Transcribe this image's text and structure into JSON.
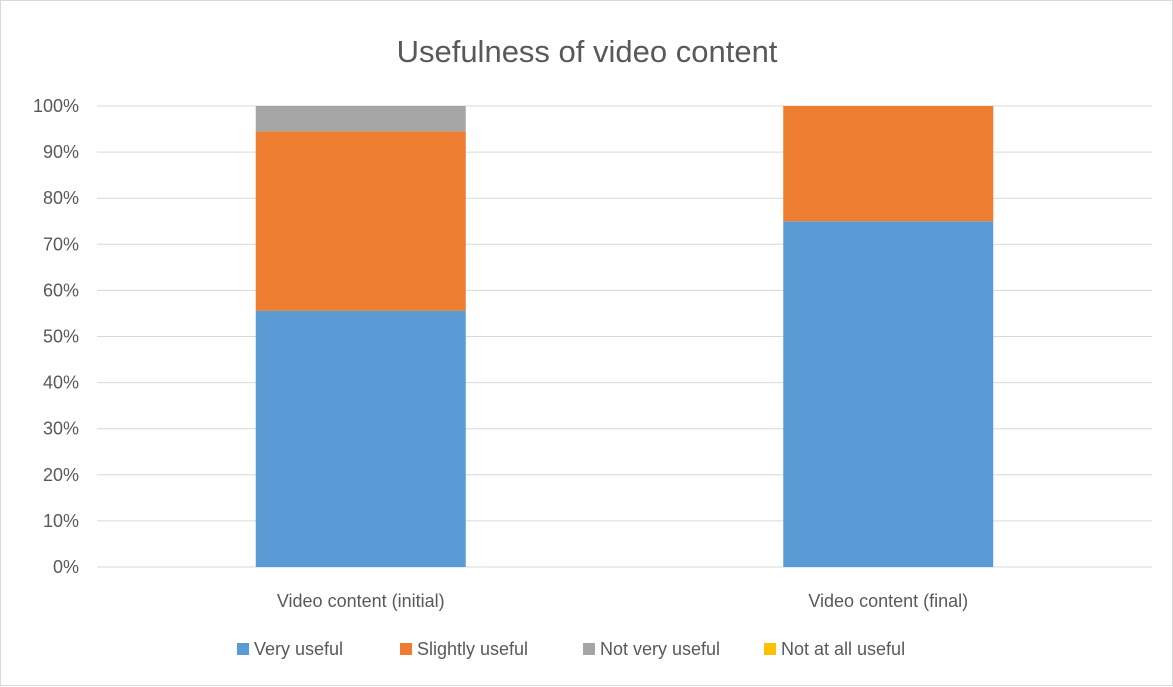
{
  "chart_data": {
    "type": "bar",
    "stacked": true,
    "title": "Usefulness of video content",
    "categories": [
      "Video content (initial)",
      "Video content (final)"
    ],
    "series": [
      {
        "name": "Very useful",
        "color": "#5b9bd5",
        "values": [
          55.6,
          75
        ]
      },
      {
        "name": "Slightly useful",
        "color": "#ed7d31",
        "values": [
          38.9,
          25
        ]
      },
      {
        "name": "Not very useful",
        "color": "#a5a5a5",
        "values": [
          5.5,
          0
        ]
      },
      {
        "name": "Not at all useful",
        "color": "#ffc000",
        "values": [
          0,
          0
        ]
      }
    ],
    "ylim": [
      0,
      100
    ],
    "yticks": [
      "0%",
      "10%",
      "20%",
      "30%",
      "40%",
      "50%",
      "60%",
      "70%",
      "80%",
      "90%",
      "100%"
    ],
    "grid": true,
    "legend_position": "bottom",
    "xlabel": "",
    "ylabel": ""
  }
}
